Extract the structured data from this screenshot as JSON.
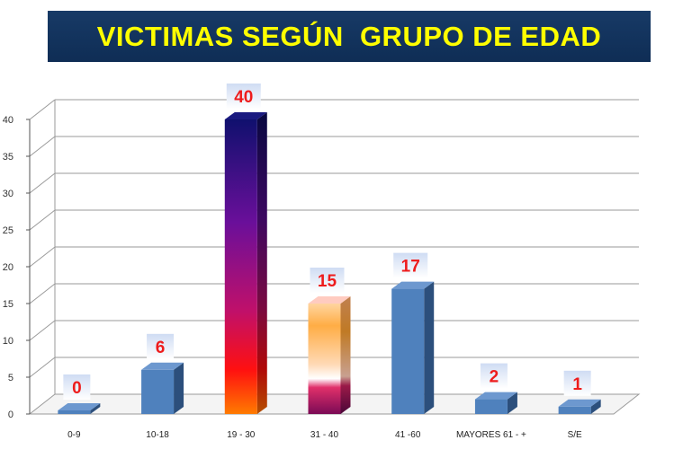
{
  "chart_data": {
    "type": "bar",
    "title": "VICTIMAS SEGÚN  GRUPO DE EDAD",
    "categories": [
      "0-9",
      "10-18",
      "19 - 30",
      "31 - 40",
      "41 -60",
      "MAYORES 61 - +",
      "S/E"
    ],
    "values": [
      0,
      6,
      40,
      15,
      17,
      2,
      1
    ],
    "ylim": [
      0,
      40
    ],
    "yticks": [
      0,
      5,
      10,
      15,
      20,
      25,
      30,
      35,
      40
    ],
    "grid": true,
    "xlabel": "",
    "ylabel": "",
    "colors": {
      "bar": "#4f81bd",
      "data_label": "#ee1c1c",
      "title_bg": "#173a66",
      "title_text": "#ffff00"
    }
  }
}
